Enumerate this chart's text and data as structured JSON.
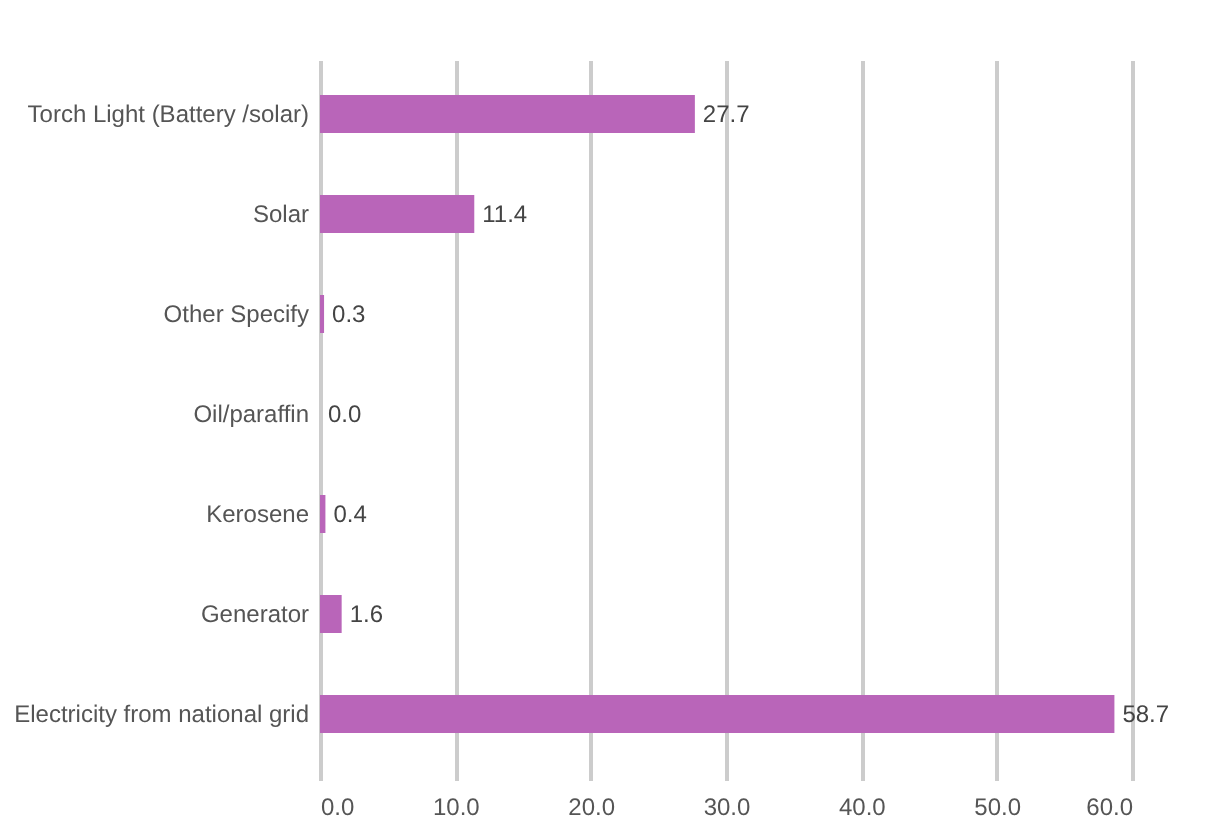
{
  "chart_data": {
    "type": "bar",
    "orientation": "horizontal",
    "categories": [
      "Torch Light (Battery /solar)",
      "Solar",
      "Other Specify",
      "Oil/paraffin",
      "Kerosene",
      "Generator",
      "Electricity from national grid"
    ],
    "values": [
      27.7,
      11.4,
      0.3,
      0.0,
      0.4,
      1.6,
      58.7
    ],
    "value_labels": [
      "27.7",
      "11.4",
      "0.3",
      "0.0",
      "0.4",
      "1.6",
      "58.7"
    ],
    "color": "#b965b9",
    "xlim": [
      0,
      60
    ],
    "xticks": [
      {
        "value": 0,
        "label": "0.0"
      },
      {
        "value": 10,
        "label": "10.0"
      },
      {
        "value": 20,
        "label": "20.0"
      },
      {
        "value": 30,
        "label": "30.0"
      },
      {
        "value": 40,
        "label": "40.0"
      },
      {
        "value": 50,
        "label": "50.0"
      },
      {
        "value": 60,
        "label": "60.0"
      }
    ],
    "grid": "x"
  }
}
